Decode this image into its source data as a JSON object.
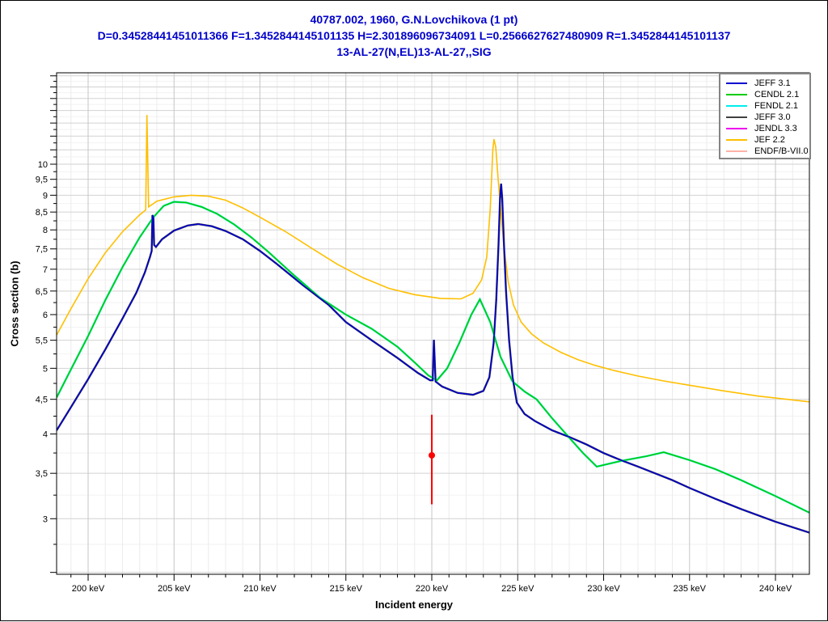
{
  "header": {
    "line1": "40787.002, 1960, G.N.Lovchikova (1 pt)",
    "line2": "D=0.34528441451011366 F=1.3452844145101135 H=2.301896096734091 L=0.2566627627480909 R=1.3452844145101137",
    "line3": "13-AL-27(N,EL)13-AL-27,,SIG",
    "title_color": "#0000cc"
  },
  "chart_data": {
    "type": "line",
    "title": "40787.002, 1960, G.N.Lovchikova (1 pt)",
    "subtitle": "13-AL-27(N,EL)13-AL-27,,SIG",
    "xlabel": "Incident energy",
    "ylabel": "Cross section (b)",
    "x_unit": "keV",
    "y_unit": "b",
    "x_scale": "linear",
    "y_scale": "log",
    "x_range": [
      198.165,
      241.975
    ],
    "y_range": [
      2.484,
      13.64
    ],
    "grid": true,
    "legend_position": "top-right",
    "x_major_ticks": [
      {
        "value": 200,
        "label": "200 keV"
      },
      {
        "value": 205,
        "label": "205 keV"
      },
      {
        "value": 210,
        "label": "210 keV"
      },
      {
        "value": 215,
        "label": "215 keV"
      },
      {
        "value": 220,
        "label": "220 keV"
      },
      {
        "value": 225,
        "label": "225 keV"
      },
      {
        "value": 230,
        "label": "230 keV"
      },
      {
        "value": 235,
        "label": "235 keV"
      },
      {
        "value": 240,
        "label": "240 keV"
      }
    ],
    "x_minor_step": 1,
    "y_major_ticks": [
      {
        "value": 3,
        "label": "3"
      },
      {
        "value": 3.5,
        "label": "3,5"
      },
      {
        "value": 4,
        "label": "4"
      },
      {
        "value": 4.5,
        "label": "4,5"
      },
      {
        "value": 5,
        "label": "5"
      },
      {
        "value": 5.5,
        "label": "5,5"
      },
      {
        "value": 6,
        "label": "6"
      },
      {
        "value": 6.5,
        "label": "6,5"
      },
      {
        "value": 7,
        "label": "7"
      },
      {
        "value": 7.5,
        "label": "7,5"
      },
      {
        "value": 8,
        "label": "8"
      },
      {
        "value": 8.5,
        "label": "8,5"
      },
      {
        "value": 9,
        "label": "9"
      },
      {
        "value": 9.5,
        "label": "9,5"
      },
      {
        "value": 10,
        "label": "10"
      }
    ],
    "y_minor_step": 0.25,
    "series": [
      {
        "name": "JEFF 3.1",
        "color": "#0000cd",
        "points": [
          [
            198.17,
            4.05
          ],
          [
            199,
            4.38
          ],
          [
            200,
            4.82
          ],
          [
            201,
            5.33
          ],
          [
            202,
            5.92
          ],
          [
            202.8,
            6.46
          ],
          [
            203.3,
            6.92
          ],
          [
            203.6,
            7.3
          ],
          [
            203.7,
            7.45
          ],
          [
            203.74,
            8.41
          ],
          [
            203.8,
            8.35
          ],
          [
            203.84,
            7.6
          ],
          [
            203.95,
            7.55
          ],
          [
            204.3,
            7.75
          ],
          [
            205,
            7.98
          ],
          [
            205.8,
            8.12
          ],
          [
            206.4,
            8.16
          ],
          [
            207.2,
            8.1
          ],
          [
            208,
            7.97
          ],
          [
            209,
            7.75
          ],
          [
            210,
            7.45
          ],
          [
            211,
            7.12
          ],
          [
            212.5,
            6.63
          ],
          [
            214,
            6.2
          ],
          [
            215,
            5.85
          ],
          [
            216.5,
            5.5
          ],
          [
            218,
            5.18
          ],
          [
            219.2,
            4.92
          ],
          [
            219.9,
            4.8
          ],
          [
            220.05,
            4.8
          ],
          [
            220.12,
            5.51
          ],
          [
            220.22,
            4.78
          ],
          [
            220.6,
            4.7
          ],
          [
            221.5,
            4.6
          ],
          [
            222.4,
            4.57
          ],
          [
            223,
            4.63
          ],
          [
            223.35,
            4.85
          ],
          [
            223.6,
            5.45
          ],
          [
            223.75,
            6.3
          ],
          [
            223.88,
            7.6
          ],
          [
            223.97,
            8.9
          ],
          [
            224.03,
            9.36
          ],
          [
            224.1,
            8.9
          ],
          [
            224.2,
            7.6
          ],
          [
            224.32,
            6.5
          ],
          [
            224.5,
            5.5
          ],
          [
            224.7,
            4.85
          ],
          [
            224.95,
            4.45
          ],
          [
            225.4,
            4.28
          ],
          [
            226,
            4.18
          ],
          [
            227,
            4.05
          ],
          [
            228,
            3.96
          ],
          [
            229,
            3.86
          ],
          [
            230,
            3.75
          ],
          [
            231,
            3.66
          ],
          [
            232,
            3.58
          ],
          [
            233,
            3.5
          ],
          [
            234,
            3.42
          ],
          [
            235,
            3.33
          ],
          [
            236.5,
            3.21
          ],
          [
            238,
            3.1
          ],
          [
            240,
            2.97
          ],
          [
            242,
            2.86
          ]
        ]
      },
      {
        "name": "CENDL 2.1",
        "color": "#00cc00",
        "points": [
          [
            198.17,
            4.53
          ],
          [
            199,
            4.98
          ],
          [
            200,
            5.58
          ],
          [
            201,
            6.3
          ],
          [
            202,
            7.05
          ],
          [
            203,
            7.8
          ],
          [
            203.8,
            8.35
          ],
          [
            204.4,
            8.68
          ],
          [
            205,
            8.8
          ],
          [
            205.7,
            8.78
          ],
          [
            206.6,
            8.65
          ],
          [
            207.5,
            8.45
          ],
          [
            208.5,
            8.15
          ],
          [
            209.5,
            7.8
          ],
          [
            210.5,
            7.42
          ],
          [
            212,
            6.85
          ],
          [
            213.5,
            6.35
          ],
          [
            215,
            6.0
          ],
          [
            216.5,
            5.72
          ],
          [
            218,
            5.38
          ],
          [
            219,
            5.1
          ],
          [
            219.8,
            4.88
          ],
          [
            220.3,
            4.8
          ],
          [
            220.9,
            5.0
          ],
          [
            221.6,
            5.45
          ],
          [
            222.3,
            6.0
          ],
          [
            222.8,
            6.32
          ],
          [
            223.4,
            5.85
          ],
          [
            224,
            5.2
          ],
          [
            224.7,
            4.78
          ],
          [
            225.4,
            4.62
          ],
          [
            226.1,
            4.5
          ],
          [
            227,
            4.22
          ],
          [
            228,
            3.95
          ],
          [
            228.8,
            3.75
          ],
          [
            229.6,
            3.58
          ],
          [
            231,
            3.65
          ],
          [
            232.5,
            3.71
          ],
          [
            233.5,
            3.76
          ],
          [
            235,
            3.66
          ],
          [
            236.5,
            3.55
          ],
          [
            238,
            3.42
          ],
          [
            240,
            3.24
          ],
          [
            242,
            3.06
          ]
        ]
      },
      {
        "name": "FENDL 2.1",
        "color": "#00eeee",
        "coincides_with": "CENDL 2.1"
      },
      {
        "name": "JEFF 3.0",
        "color": "#404040",
        "coincides_with": "JEFF 3.1"
      },
      {
        "name": "JENDL 3.3",
        "color": "#ee00ee",
        "coincides_with": "JEFF 3.1"
      },
      {
        "name": "JEF 2.2",
        "color": "#ffbf00",
        "points": [
          [
            198.17,
            5.6
          ],
          [
            199,
            6.12
          ],
          [
            200,
            6.78
          ],
          [
            201,
            7.4
          ],
          [
            202,
            7.95
          ],
          [
            203,
            8.42
          ],
          [
            203.35,
            8.56
          ],
          [
            203.42,
            11.82
          ],
          [
            203.52,
            8.65
          ],
          [
            204,
            8.82
          ],
          [
            205,
            8.95
          ],
          [
            206,
            9.0
          ],
          [
            207,
            8.97
          ],
          [
            208,
            8.85
          ],
          [
            209,
            8.62
          ],
          [
            210,
            8.35
          ],
          [
            211.5,
            7.95
          ],
          [
            213,
            7.52
          ],
          [
            214.5,
            7.12
          ],
          [
            216,
            6.8
          ],
          [
            217.5,
            6.56
          ],
          [
            219,
            6.42
          ],
          [
            220.5,
            6.34
          ],
          [
            221.7,
            6.33
          ],
          [
            222.4,
            6.45
          ],
          [
            222.9,
            6.75
          ],
          [
            223.2,
            7.3
          ],
          [
            223.4,
            8.6
          ],
          [
            223.55,
            10.5
          ],
          [
            223.62,
            10.89
          ],
          [
            223.72,
            10.6
          ],
          [
            223.85,
            9.6
          ],
          [
            224,
            8.6
          ],
          [
            224.2,
            7.55
          ],
          [
            224.45,
            6.7
          ],
          [
            224.75,
            6.2
          ],
          [
            225.2,
            5.85
          ],
          [
            225.8,
            5.62
          ],
          [
            226.5,
            5.45
          ],
          [
            227.5,
            5.28
          ],
          [
            228.5,
            5.15
          ],
          [
            229.5,
            5.05
          ],
          [
            230.5,
            4.97
          ],
          [
            232,
            4.87
          ],
          [
            233.5,
            4.79
          ],
          [
            235,
            4.72
          ],
          [
            237,
            4.63
          ],
          [
            239,
            4.55
          ],
          [
            242,
            4.46
          ]
        ]
      },
      {
        "name": "ENDF/B-VII.0",
        "color": "#ffb2a6",
        "coincides_with": "JEFF 3.1"
      }
    ],
    "exp_points": [
      {
        "x": 220.0,
        "y": 3.72,
        "y_err_low": 3.15,
        "y_err_high": 4.27,
        "color": "#ff0000"
      }
    ]
  }
}
